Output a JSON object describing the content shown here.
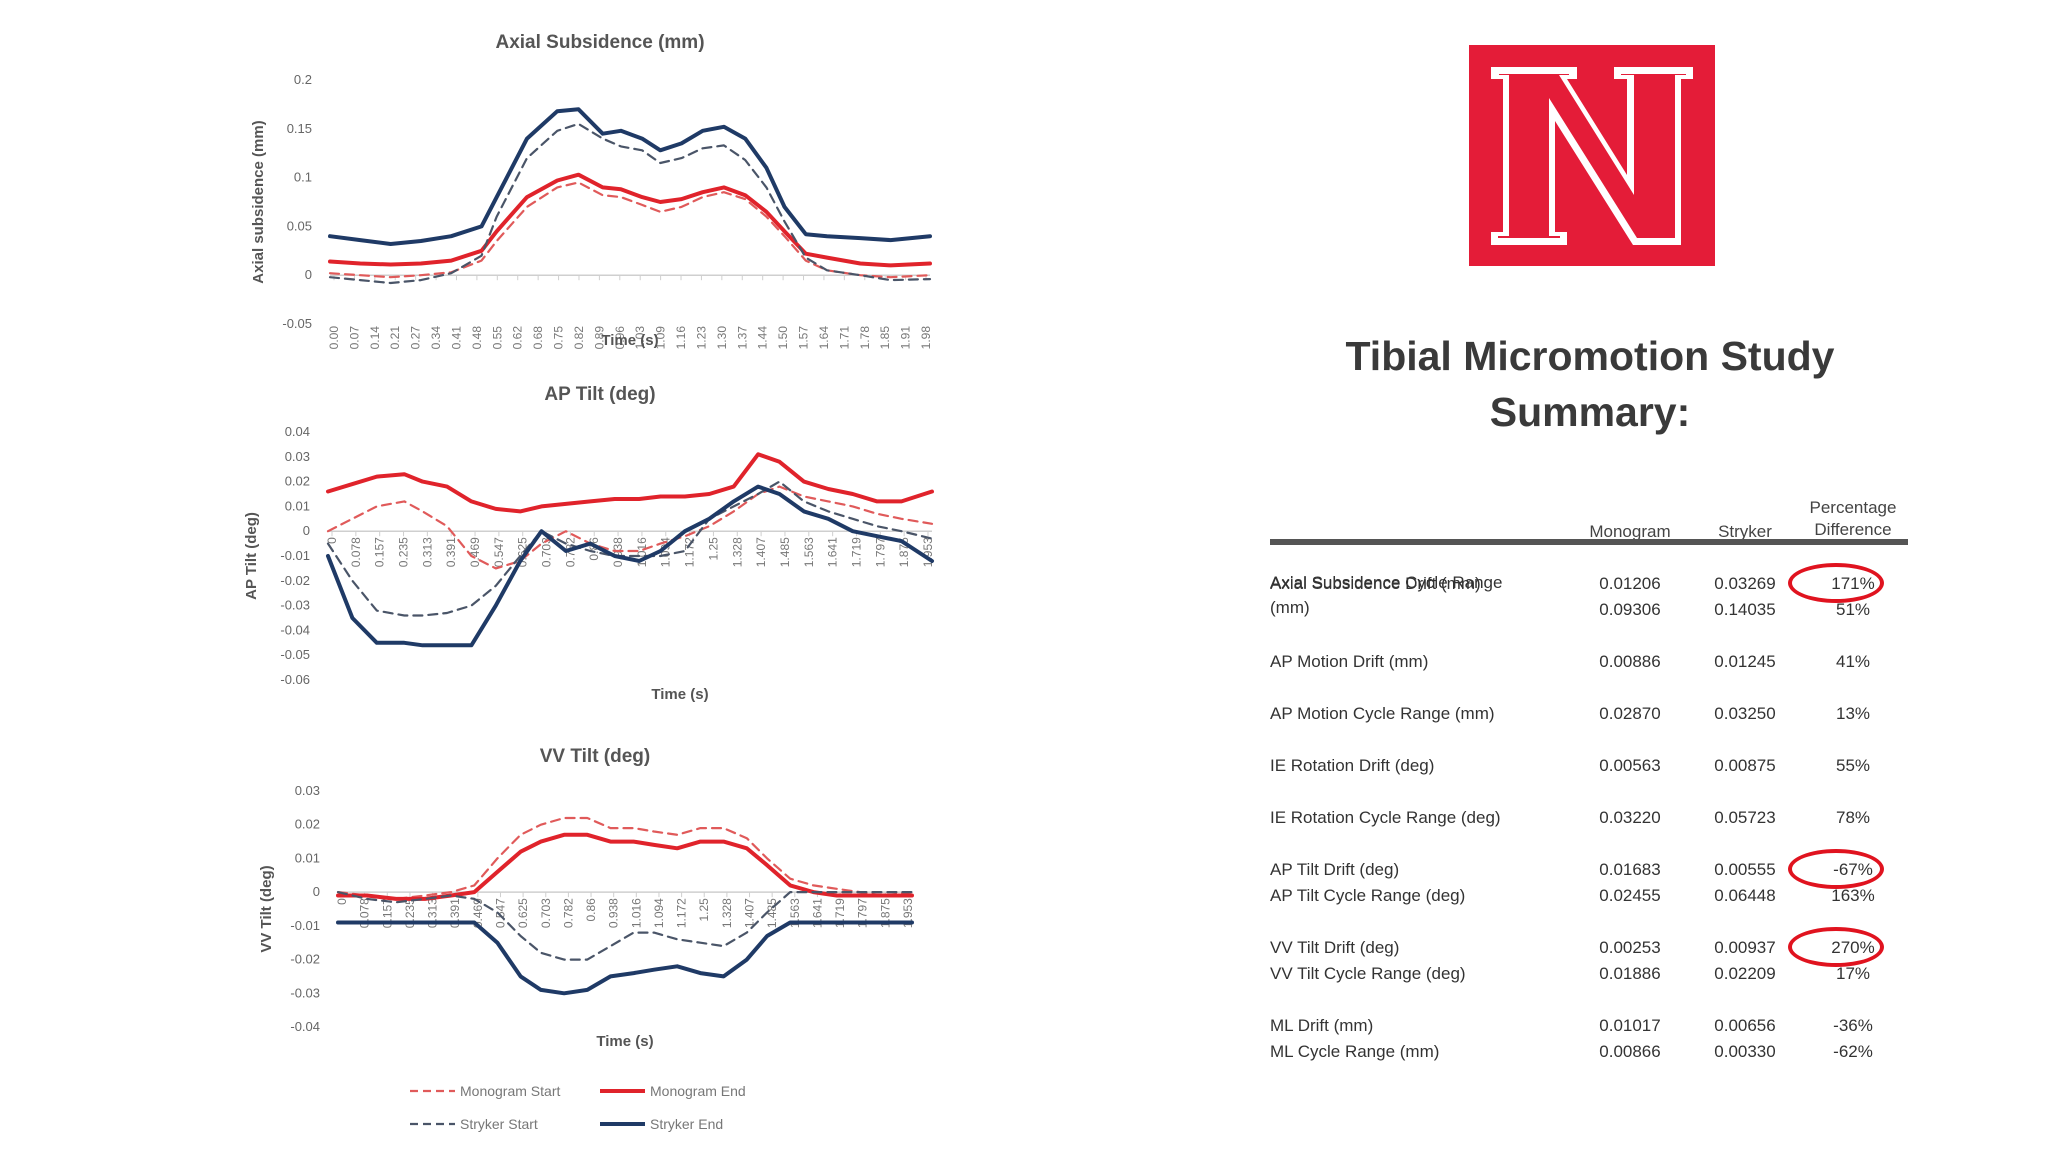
{
  "chart_data": [
    {
      "type": "line",
      "title": "Axial Subsidence (mm)",
      "xlabel": "Time (s)",
      "ylabel": "Axial subsidence (mm)",
      "ylim": [
        -0.05,
        0.2
      ],
      "yticks": [
        "0.2",
        "0.15",
        "0.1",
        "0.05",
        "0",
        "-0.05"
      ],
      "x_tick_labels": [
        "0.00",
        "0.07",
        "0.14",
        "0.21",
        "0.27",
        "0.34",
        "0.41",
        "0.48",
        "0.55",
        "0.62",
        "0.68",
        "0.75",
        "0.82",
        "0.89",
        "0.96",
        "1.03",
        "1.09",
        "1.16",
        "1.23",
        "1.30",
        "1.37",
        "1.44",
        "1.50",
        "1.57",
        "1.64",
        "1.71",
        "1.78",
        "1.85",
        "1.91",
        "1.98"
      ],
      "x": [
        0,
        0.1,
        0.2,
        0.3,
        0.4,
        0.5,
        0.55,
        0.65,
        0.75,
        0.82,
        0.9,
        0.96,
        1.03,
        1.09,
        1.16,
        1.23,
        1.3,
        1.37,
        1.44,
        1.5,
        1.57,
        1.64,
        1.75,
        1.85,
        1.98
      ],
      "series": [
        {
          "name": "Monogram Start",
          "style": "dashed",
          "color": "#e05a5a",
          "values": [
            0.002,
            0.0,
            -0.002,
            0.0,
            0.003,
            0.015,
            0.035,
            0.07,
            0.09,
            0.095,
            0.082,
            0.08,
            0.072,
            0.065,
            0.07,
            0.08,
            0.085,
            0.078,
            0.06,
            0.04,
            0.015,
            0.005,
            0.0,
            -0.002,
            0.0
          ]
        },
        {
          "name": "Monogram End",
          "style": "solid",
          "color": "#e0232b",
          "values": [
            0.014,
            0.012,
            0.011,
            0.012,
            0.015,
            0.025,
            0.045,
            0.08,
            0.097,
            0.103,
            0.09,
            0.088,
            0.08,
            0.075,
            0.078,
            0.085,
            0.09,
            0.082,
            0.065,
            0.045,
            0.022,
            0.018,
            0.012,
            0.01,
            0.012
          ]
        },
        {
          "name": "Stryker Start",
          "style": "dashed",
          "color": "#4a5568",
          "values": [
            -0.002,
            -0.005,
            -0.008,
            -0.005,
            0.002,
            0.02,
            0.06,
            0.12,
            0.148,
            0.155,
            0.14,
            0.132,
            0.128,
            0.115,
            0.12,
            0.13,
            0.133,
            0.118,
            0.09,
            0.055,
            0.018,
            0.005,
            0.0,
            -0.005,
            -0.004
          ]
        },
        {
          "name": "Stryker End",
          "style": "solid",
          "color": "#1f3a66",
          "values": [
            0.04,
            0.036,
            0.032,
            0.035,
            0.04,
            0.05,
            0.08,
            0.14,
            0.168,
            0.17,
            0.145,
            0.148,
            0.14,
            0.128,
            0.135,
            0.148,
            0.152,
            0.14,
            0.11,
            0.07,
            0.042,
            0.04,
            0.038,
            0.036,
            0.04
          ]
        }
      ]
    },
    {
      "type": "line",
      "title": "AP Tilt (deg)",
      "xlabel": "Time (s)",
      "ylabel": "AP Tilt (deg)",
      "ylim": [
        -0.06,
        0.04
      ],
      "yticks": [
        "0.04",
        "0.03",
        "0.02",
        "0.01",
        "0",
        "-0.01",
        "-0.02",
        "-0.03",
        "-0.04",
        "-0.05",
        "-0.06"
      ],
      "x_tick_labels": [
        "0",
        "0.078",
        "0.157",
        "0.235",
        "0.313",
        "0.391",
        "0.469",
        "0.547",
        "0.625",
        "0.703",
        "0.782",
        "0.86",
        "0.938",
        "1.016",
        "1.094",
        "1.172",
        "1.25",
        "1.328",
        "1.407",
        "1.485",
        "1.563",
        "1.641",
        "1.719",
        "1.797",
        "1.875",
        "1.953"
      ],
      "x": [
        0,
        0.08,
        0.16,
        0.25,
        0.31,
        0.39,
        0.47,
        0.55,
        0.63,
        0.7,
        0.78,
        0.86,
        0.94,
        1.02,
        1.09,
        1.17,
        1.25,
        1.33,
        1.41,
        1.48,
        1.56,
        1.64,
        1.72,
        1.8,
        1.88,
        1.98
      ],
      "series": [
        {
          "name": "Monogram Start",
          "style": "dashed",
          "color": "#e05a5a",
          "values": [
            0.0,
            0.005,
            0.01,
            0.012,
            0.008,
            0.002,
            -0.01,
            -0.015,
            -0.012,
            -0.005,
            0.0,
            -0.005,
            -0.008,
            -0.008,
            -0.005,
            -0.002,
            0.002,
            0.008,
            0.015,
            0.018,
            0.014,
            0.012,
            0.01,
            0.007,
            0.005,
            0.003
          ]
        },
        {
          "name": "Monogram End",
          "style": "solid",
          "color": "#e0232b",
          "values": [
            0.016,
            0.019,
            0.022,
            0.023,
            0.02,
            0.018,
            0.012,
            0.009,
            0.008,
            0.01,
            0.011,
            0.012,
            0.013,
            0.013,
            0.014,
            0.014,
            0.015,
            0.018,
            0.031,
            0.028,
            0.02,
            0.017,
            0.015,
            0.012,
            0.012,
            0.016
          ]
        },
        {
          "name": "Stryker Start",
          "style": "dashed",
          "color": "#4a5568",
          "values": [
            -0.005,
            -0.02,
            -0.032,
            -0.034,
            -0.034,
            -0.033,
            -0.03,
            -0.022,
            -0.01,
            0.0,
            -0.005,
            -0.008,
            -0.01,
            -0.01,
            -0.01,
            -0.008,
            0.005,
            0.01,
            0.015,
            0.02,
            0.012,
            0.008,
            0.005,
            0.002,
            0.0,
            -0.003
          ]
        },
        {
          "name": "Stryker End",
          "style": "solid",
          "color": "#1f3a66",
          "values": [
            -0.01,
            -0.035,
            -0.045,
            -0.045,
            -0.046,
            -0.046,
            -0.046,
            -0.03,
            -0.012,
            0.0,
            -0.008,
            -0.005,
            -0.01,
            -0.012,
            -0.008,
            0.0,
            0.005,
            0.012,
            0.018,
            0.015,
            0.008,
            0.005,
            0.0,
            -0.002,
            -0.004,
            -0.012
          ]
        }
      ]
    },
    {
      "type": "line",
      "title": "VV Tilt (deg)",
      "xlabel": "Time (s)",
      "ylabel": "VV Tilt (deg)",
      "ylim": [
        -0.04,
        0.03
      ],
      "yticks": [
        "0.03",
        "0.02",
        "0.01",
        "0",
        "-0.01",
        "-0.02",
        "-0.03",
        "-0.04"
      ],
      "x_tick_labels": [
        "0",
        "0.078",
        "0.157",
        "0.235",
        "0.313",
        "0.391",
        "0.469",
        "0.547",
        "0.625",
        "0.703",
        "0.782",
        "0.86",
        "0.938",
        "1.016",
        "1.094",
        "1.172",
        "1.25",
        "1.328",
        "1.407",
        "1.485",
        "1.563",
        "1.641",
        "1.719",
        "1.797",
        "1.875",
        "1.953"
      ],
      "x": [
        0,
        0.1,
        0.2,
        0.3,
        0.39,
        0.47,
        0.55,
        0.63,
        0.7,
        0.78,
        0.86,
        0.94,
        1.02,
        1.09,
        1.17,
        1.25,
        1.33,
        1.41,
        1.48,
        1.56,
        1.64,
        1.72,
        1.8,
        1.88,
        1.98
      ],
      "series": [
        {
          "name": "Monogram Start",
          "style": "dashed",
          "color": "#e05a5a",
          "values": [
            0.0,
            -0.001,
            -0.002,
            -0.001,
            0.0,
            0.002,
            0.01,
            0.017,
            0.02,
            0.022,
            0.022,
            0.019,
            0.019,
            0.018,
            0.017,
            0.019,
            0.019,
            0.016,
            0.01,
            0.004,
            0.002,
            0.001,
            0.0,
            -0.001,
            0.0
          ]
        },
        {
          "name": "Monogram End",
          "style": "solid",
          "color": "#e0232b",
          "values": [
            -0.001,
            -0.001,
            -0.002,
            -0.002,
            -0.001,
            0.0,
            0.006,
            0.012,
            0.015,
            0.017,
            0.017,
            0.015,
            0.015,
            0.014,
            0.013,
            0.015,
            0.015,
            0.013,
            0.008,
            0.002,
            0.0,
            -0.001,
            -0.001,
            -0.001,
            -0.001
          ]
        },
        {
          "name": "Stryker Start",
          "style": "dashed",
          "color": "#4a5568",
          "values": [
            0.0,
            -0.002,
            -0.003,
            -0.002,
            -0.001,
            -0.002,
            -0.006,
            -0.013,
            -0.018,
            -0.02,
            -0.02,
            -0.016,
            -0.012,
            -0.012,
            -0.014,
            -0.015,
            -0.016,
            -0.012,
            -0.006,
            0.0,
            0.0,
            0.0,
            0.0,
            0.0,
            0.0
          ]
        },
        {
          "name": "Stryker End",
          "style": "solid",
          "color": "#1f3a66",
          "values": [
            -0.009,
            -0.009,
            -0.009,
            -0.009,
            -0.009,
            -0.009,
            -0.015,
            -0.025,
            -0.029,
            -0.03,
            -0.029,
            -0.025,
            -0.024,
            -0.023,
            -0.022,
            -0.024,
            -0.025,
            -0.02,
            -0.013,
            -0.009,
            -0.009,
            -0.009,
            -0.009,
            -0.009,
            -0.009
          ]
        }
      ]
    }
  ],
  "legend": [
    {
      "label": "Monogram Start",
      "style": "dashed",
      "color": "#e05a5a"
    },
    {
      "label": "Monogram End",
      "style": "solid",
      "color": "#e0232b"
    },
    {
      "label": "Stryker Start",
      "style": "dashed",
      "color": "#4a5568"
    },
    {
      "label": "Stryker End",
      "style": "solid",
      "color": "#1f3a66"
    }
  ],
  "logo": {
    "letter": "N",
    "color": "#e41c38"
  },
  "summary": {
    "title_line1": "Tibial Micromotion Study",
    "title_line2": "Summary:",
    "headers": {
      "monogram": "Monogram",
      "stryker": "Stryker",
      "pct_line1": "Percentage",
      "pct_line2": "Difference"
    },
    "rows": [
      {
        "label": "Axial Subsidence Drift (mm)",
        "monogram": "0.01206",
        "stryker": "0.03269",
        "pct": "171%",
        "circled": true
      },
      {
        "label": "Axial Subsidence Cycle Range (mm)",
        "monogram": "0.09306",
        "stryker": "0.14035",
        "pct": "51%",
        "circled": false
      },
      {
        "label": "AP Motion Drift (mm)",
        "monogram": "0.00886",
        "stryker": "0.01245",
        "pct": "41%",
        "circled": false
      },
      {
        "label": "AP Motion Cycle Range (mm)",
        "monogram": "0.02870",
        "stryker": "0.03250",
        "pct": "13%",
        "circled": false
      },
      {
        "label": "IE Rotation Drift (deg)",
        "monogram": "0.00563",
        "stryker": "0.00875",
        "pct": "55%",
        "circled": false
      },
      {
        "label": "IE Rotation Cycle Range (deg)",
        "monogram": "0.03220",
        "stryker": "0.05723",
        "pct": "78%",
        "circled": false
      },
      {
        "label": "AP Tilt Drift (deg)",
        "monogram": "0.01683",
        "stryker": "0.00555",
        "pct": "-67%",
        "circled": true
      },
      {
        "label": "AP Tilt Cycle Range (deg)",
        "monogram": "0.02455",
        "stryker": "0.06448",
        "pct": "163%",
        "circled": false
      },
      {
        "label": "VV Tilt Drift (deg)",
        "monogram": "0.00253",
        "stryker": "0.00937",
        "pct": "270%",
        "circled": true
      },
      {
        "label": "VV Tilt Cycle Range (deg)",
        "monogram": "0.01886",
        "stryker": "0.02209",
        "pct": "17%",
        "circled": false
      },
      {
        "label": "ML Drift (mm)",
        "monogram": "0.01017",
        "stryker": "0.00656",
        "pct": "-36%",
        "circled": false
      },
      {
        "label": "ML Cycle Range (mm)",
        "monogram": "0.00866",
        "stryker": "0.00330",
        "pct": "-62%",
        "circled": false
      }
    ]
  }
}
